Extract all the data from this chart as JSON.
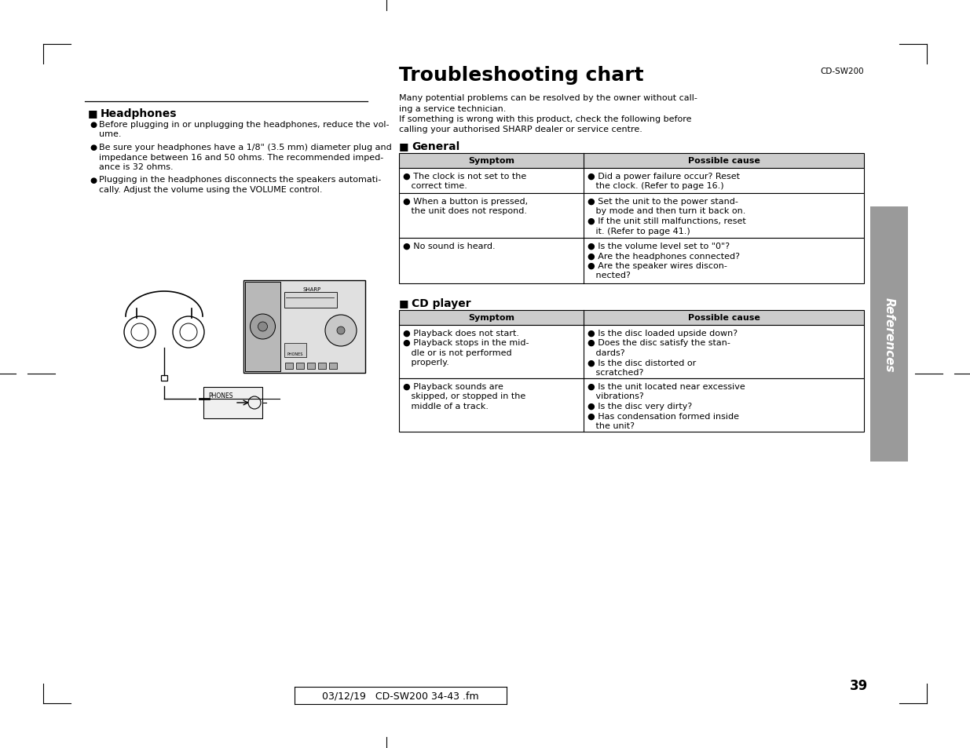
{
  "page_bg": "#ffffff",
  "title": "Troubleshooting chart",
  "model": "CD-SW200",
  "page_number": "39",
  "footer": "03/12/19   CD-SW200 34-43 .fm",
  "side_tab_text": "References",
  "side_tab_bg": "#9a9a9a",
  "intro_text": [
    "Many potential problems can be resolved by the owner without call-",
    "ing a service technician.",
    "If something is wrong with this product, check the following before",
    "calling your authorised SHARP dealer or service centre."
  ],
  "headphones_title": "Headphones",
  "headphones_bullets": [
    [
      "Before plugging in or unplugging the headphones, reduce the vol-",
      "ume."
    ],
    [
      "Be sure your headphones have a 1/8\" (3.5 mm) diameter plug and",
      "impedance between 16 and 50 ohms. The recommended imped-",
      "ance is 32 ohms."
    ],
    [
      "Plugging in the headphones disconnects the speakers automati-",
      "cally. Adjust the volume using the VOLUME control."
    ]
  ],
  "general_title": "General",
  "general_header": [
    "Symptom",
    "Possible cause"
  ],
  "general_rows": [
    {
      "symptom": [
        "● The clock is not set to the",
        "   correct time."
      ],
      "cause": [
        "● Did a power failure occur? Reset",
        "   the clock. (Refer to page 16.)"
      ]
    },
    {
      "symptom": [
        "● When a button is pressed,",
        "   the unit does not respond."
      ],
      "cause": [
        "● Set the unit to the power stand-",
        "   by mode and then turn it back on.",
        "● If the unit still malfunctions, reset",
        "   it. (Refer to page 41.)"
      ]
    },
    {
      "symptom": [
        "● No sound is heard."
      ],
      "cause": [
        "● Is the volume level set to \"0\"?",
        "● Are the headphones connected?",
        "● Are the speaker wires discon-",
        "   nected?"
      ]
    }
  ],
  "cd_title": "CD player",
  "cd_header": [
    "Symptom",
    "Possible cause"
  ],
  "cd_rows": [
    {
      "symptom": [
        "● Playback does not start.",
        "● Playback stops in the mid-",
        "   dle or is not performed",
        "   properly."
      ],
      "cause": [
        "● Is the disc loaded upside down?",
        "● Does the disc satisfy the stan-",
        "   dards?",
        "● Is the disc distorted or",
        "   scratched?"
      ]
    },
    {
      "symptom": [
        "● Playback sounds are",
        "   skipped, or stopped in the",
        "   middle of a track."
      ],
      "cause": [
        "● Is the unit located near excessive",
        "   vibrations?",
        "● Is the disc very dirty?",
        "● Has condensation formed inside",
        "   the unit?"
      ]
    }
  ],
  "table_header_bg": "#cccccc",
  "text_color": "#000000",
  "line_color": "#000000",
  "font_size_body": 8.0,
  "font_size_title": 18,
  "font_size_section": 10,
  "font_size_small": 7.5
}
